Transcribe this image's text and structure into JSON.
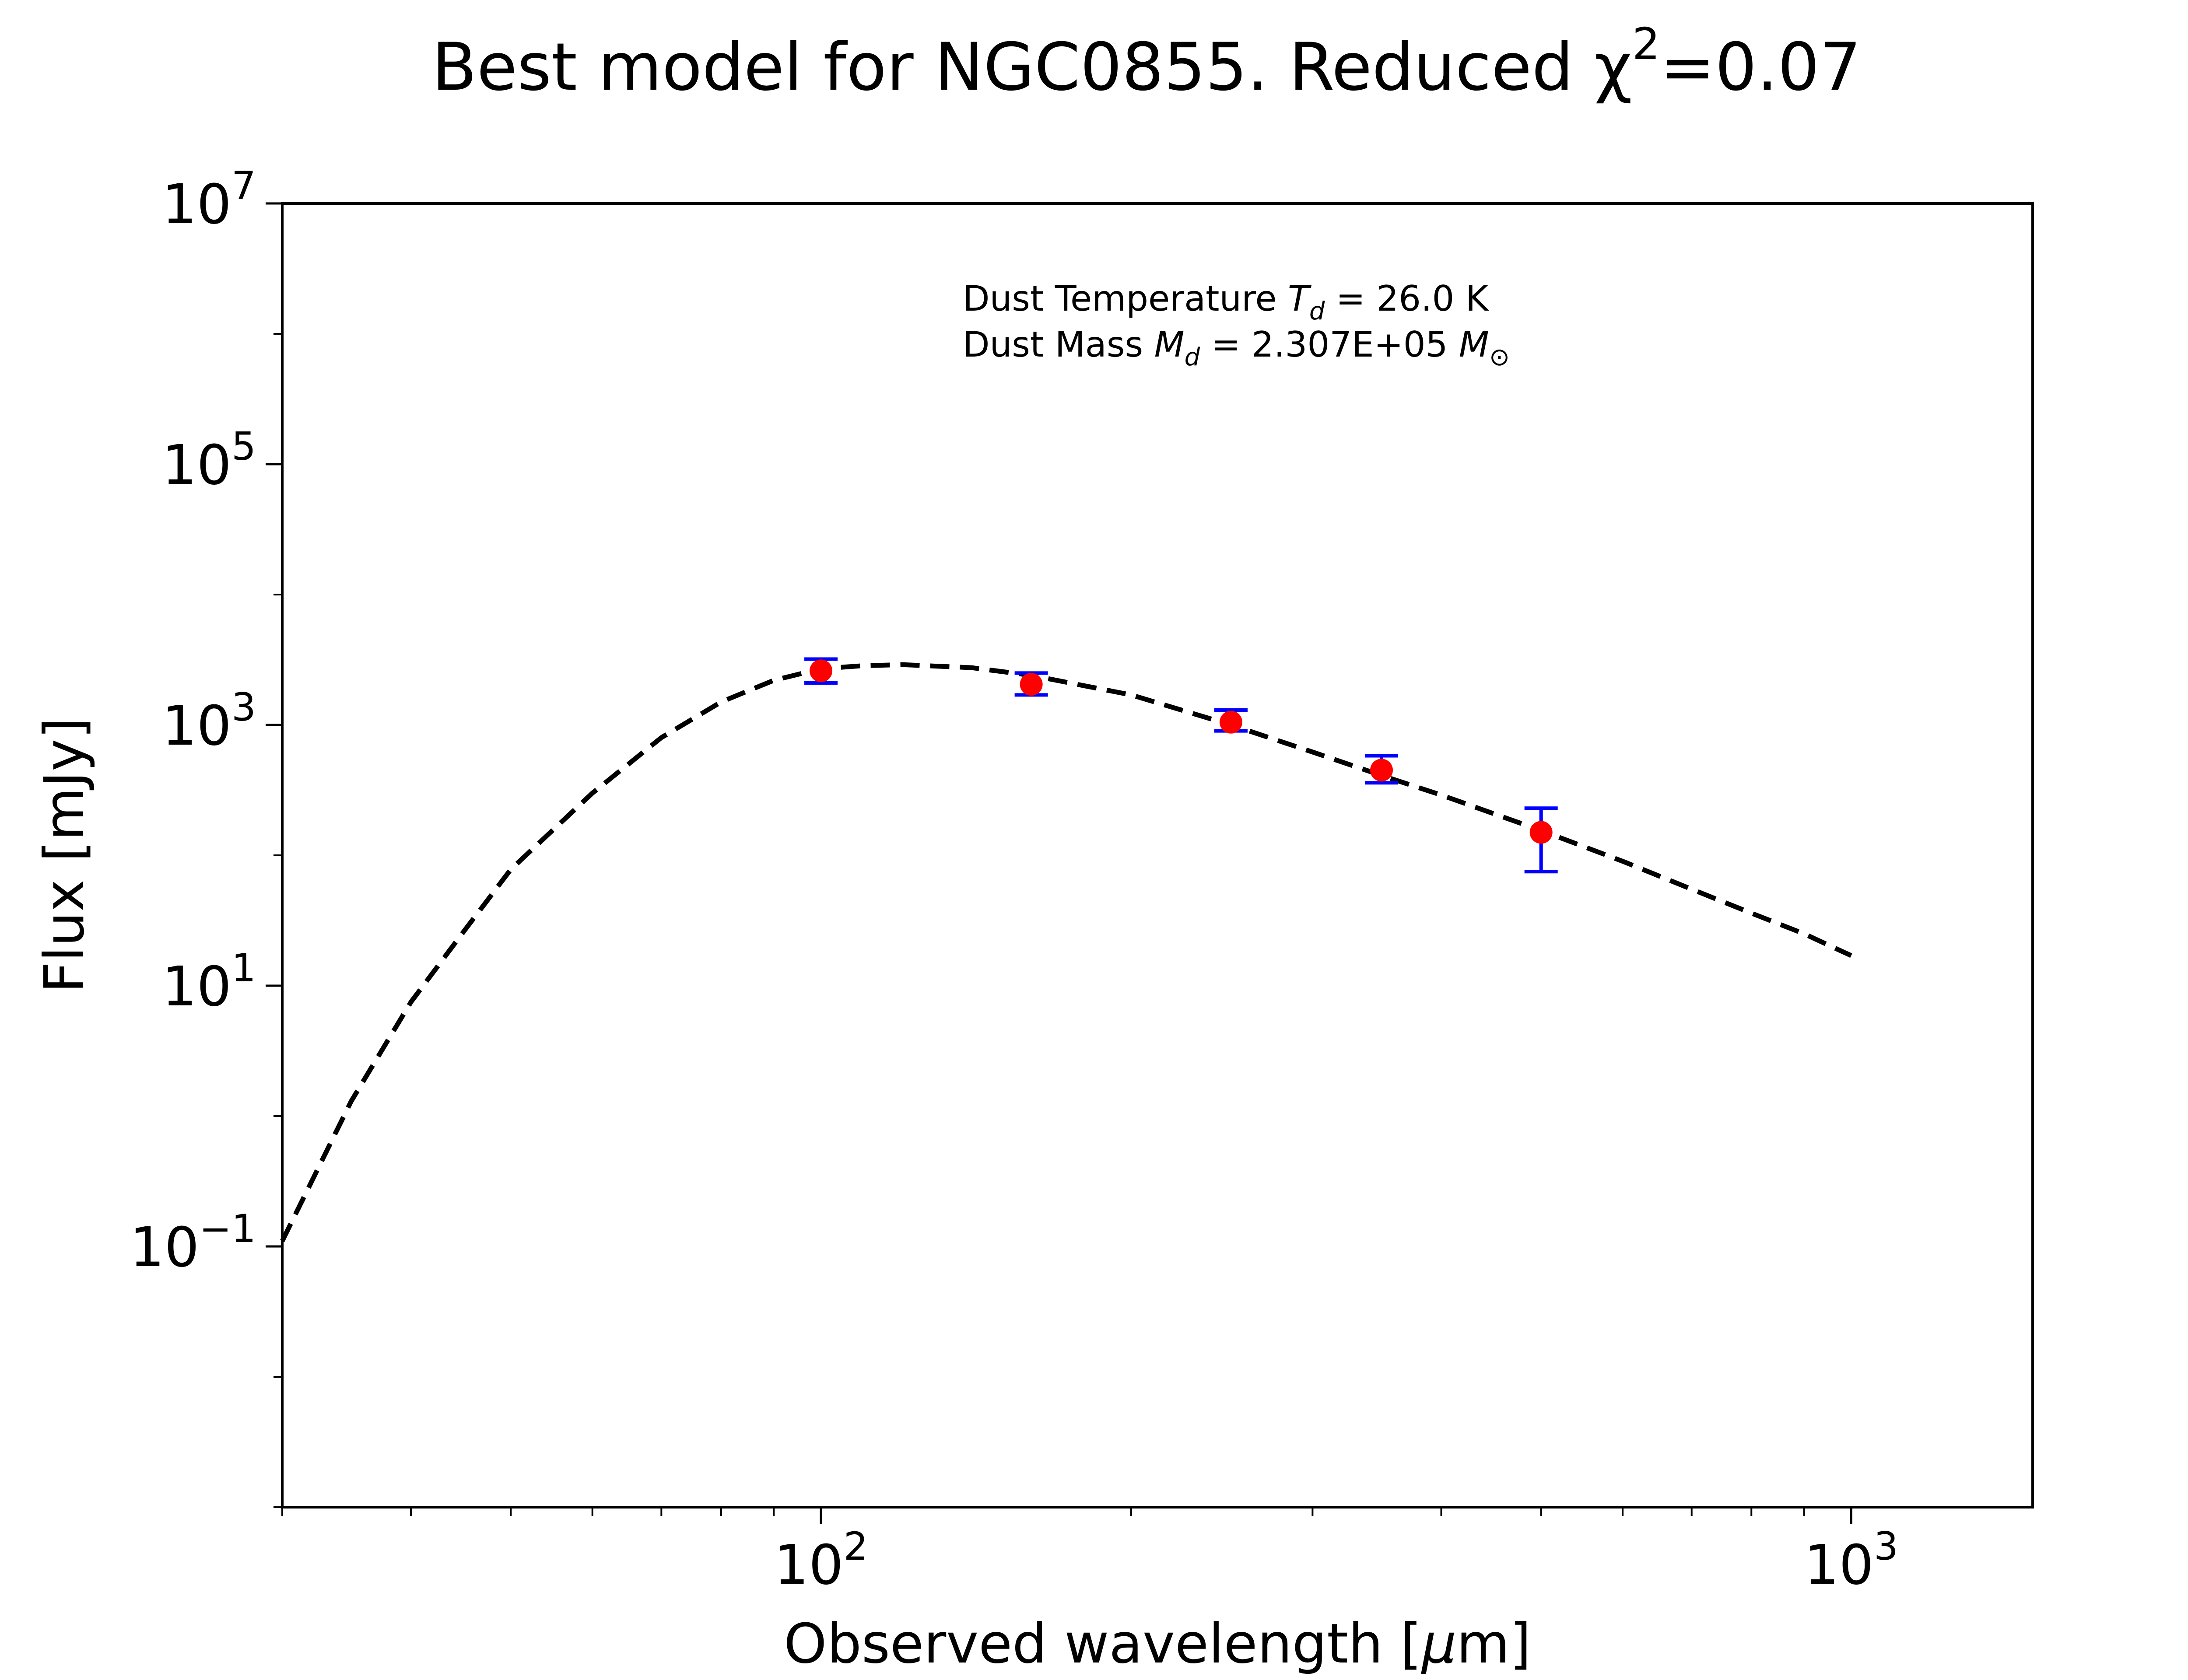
{
  "chart_data": {
    "type": "scatter",
    "title": {
      "text": "Best model for NGC0855. Reduced χ",
      "superscript": "2",
      "suffix": "=0.07"
    },
    "xlabel": {
      "prefix": "Observed wavelength [",
      "italic": "μ",
      "suffix": "m]"
    },
    "ylabel": "Flux [mJy]",
    "x_scale": "log",
    "y_scale": "log",
    "xlim": [
      30,
      1500
    ],
    "ylim": [
      0.001,
      10000000
    ],
    "x_ticks": [
      {
        "value": 100,
        "base": "10",
        "exp": "2"
      },
      {
        "value": 1000,
        "base": "10",
        "exp": "3"
      }
    ],
    "y_ticks": [
      {
        "value": 0.1,
        "base": "10",
        "exp": "−1"
      },
      {
        "value": 10,
        "base": "10",
        "exp": "1"
      },
      {
        "value": 1000,
        "base": "10",
        "exp": "3"
      },
      {
        "value": 100000,
        "base": "10",
        "exp": "5"
      },
      {
        "value": 10000000,
        "base": "10",
        "exp": "7"
      }
    ],
    "grid": false,
    "annotations": {
      "temperature": {
        "prefix": "Dust Temperature ",
        "symbol": "T",
        "sub": "d",
        "suffix": " = 26.0 K"
      },
      "mass": {
        "prefix": "Dust Mass ",
        "symbol": "M",
        "sub": "d",
        "value": " = 2.307E+05 ",
        "unit_symbol": "M",
        "unit_sub": "⊙"
      }
    },
    "series": [
      {
        "style": "dashed",
        "color": "#000000",
        "x": [
          30,
          35,
          40,
          45,
          50,
          60,
          70,
          80,
          90,
          100,
          110,
          120,
          140,
          160,
          180,
          200,
          250,
          300,
          350,
          400,
          500,
          600,
          700,
          800,
          900,
          1000
        ],
        "y": [
          0.11,
          1.3,
          7.5,
          26,
          78,
          300,
          800,
          1500,
          2200,
          2700,
          2850,
          2900,
          2750,
          2400,
          2000,
          1700,
          1000,
          620,
          410,
          290,
          155,
          90,
          55,
          36,
          25,
          17
        ]
      },
      {
        "style": "points",
        "color": "#ff0000",
        "error_color": "#0000ff",
        "x": [
          100,
          160,
          250,
          350,
          500
        ],
        "y": [
          2600,
          2050,
          1050,
          450,
          150
        ],
        "yerr_low": [
          2100,
          1700,
          900,
          360,
          75
        ],
        "yerr_high": [
          3200,
          2500,
          1300,
          580,
          230
        ]
      }
    ]
  }
}
